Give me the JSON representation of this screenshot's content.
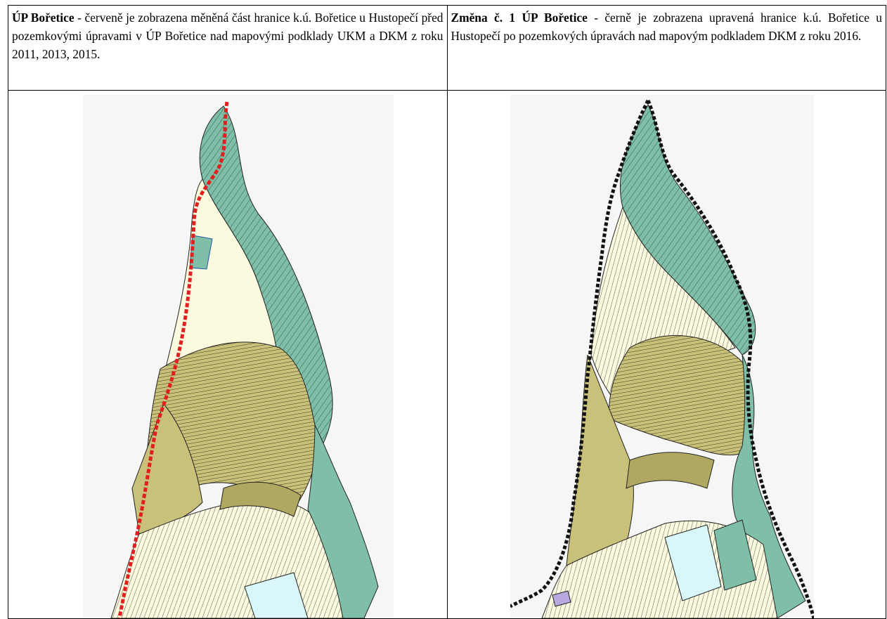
{
  "left": {
    "title": "ÚP Bořetice",
    "text": " - červeně je zobrazena měněná část  hranice k.ú. Bořetice u Hustopečí před pozemkovými úpravami v ÚP Bořetice nad mapovými podklady UKM a DKM z roku 2011, 2013, 2015.",
    "boundary_color": "#e02020"
  },
  "right": {
    "title": "Změna č. 1 ÚP Bořetice",
    "text": " - černě je zobrazena upravená hranice k.ú. Bořetice u Hustopečí po pozemkových úpravách nad mapovým podkladem DKM z roku 2016.",
    "boundary_color": "#111111"
  },
  "colors": {
    "teal": "#7fbfa8",
    "olive": "#c9c07a",
    "cream": "#fbf9de",
    "light_blue": "#d9f6f8",
    "background": "#f6f6f6"
  }
}
